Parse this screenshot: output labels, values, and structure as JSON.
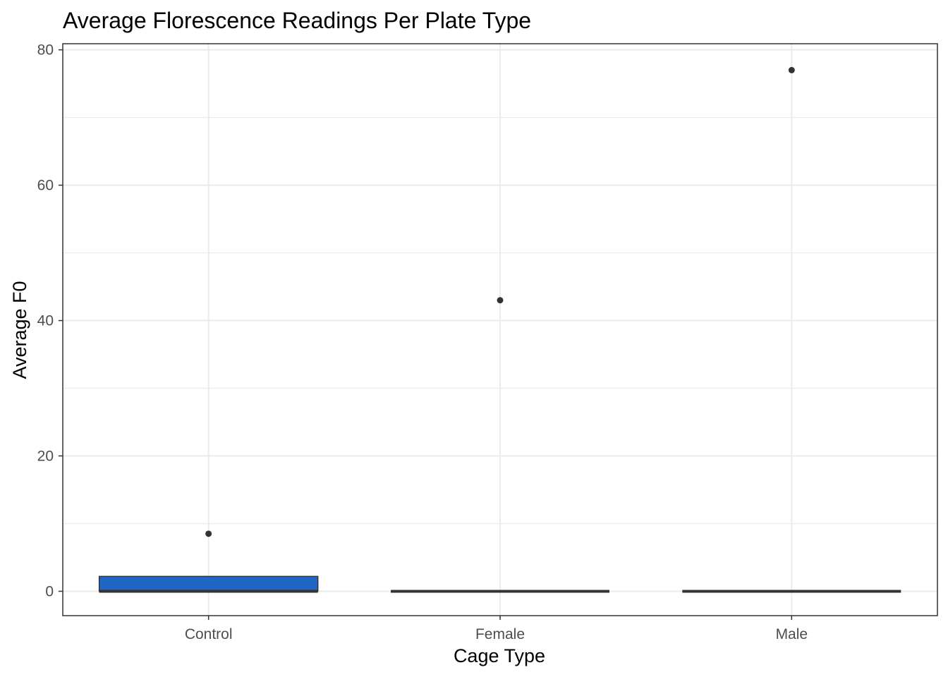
{
  "chart_data": {
    "type": "boxplot",
    "title": "Average Florescence Readings Per Plate Type",
    "xlabel": "Cage Type",
    "ylabel": "Average F0",
    "categories": [
      "Control",
      "Female",
      "Male"
    ],
    "ylim": [
      -3.6,
      80.9
    ],
    "y_ticks": [
      0,
      20,
      40,
      60,
      80
    ],
    "grid": true,
    "boxes": [
      {
        "category": "Control",
        "min": 0,
        "q1": 0,
        "median": 0,
        "q3": 2.2,
        "max": 2.2,
        "outliers": [
          8.5
        ]
      },
      {
        "category": "Female",
        "min": 0,
        "q1": 0,
        "median": 0,
        "q3": 0,
        "max": 0,
        "outliers": [
          43
        ]
      },
      {
        "category": "Male",
        "min": 0,
        "q1": 0,
        "median": 0,
        "q3": 0,
        "max": 0,
        "outliers": [
          77
        ]
      }
    ],
    "colors": {
      "box_fill": "#2166c4",
      "box_line": "#333333",
      "outlier": "#333333",
      "grid": "#ebebeb"
    }
  }
}
